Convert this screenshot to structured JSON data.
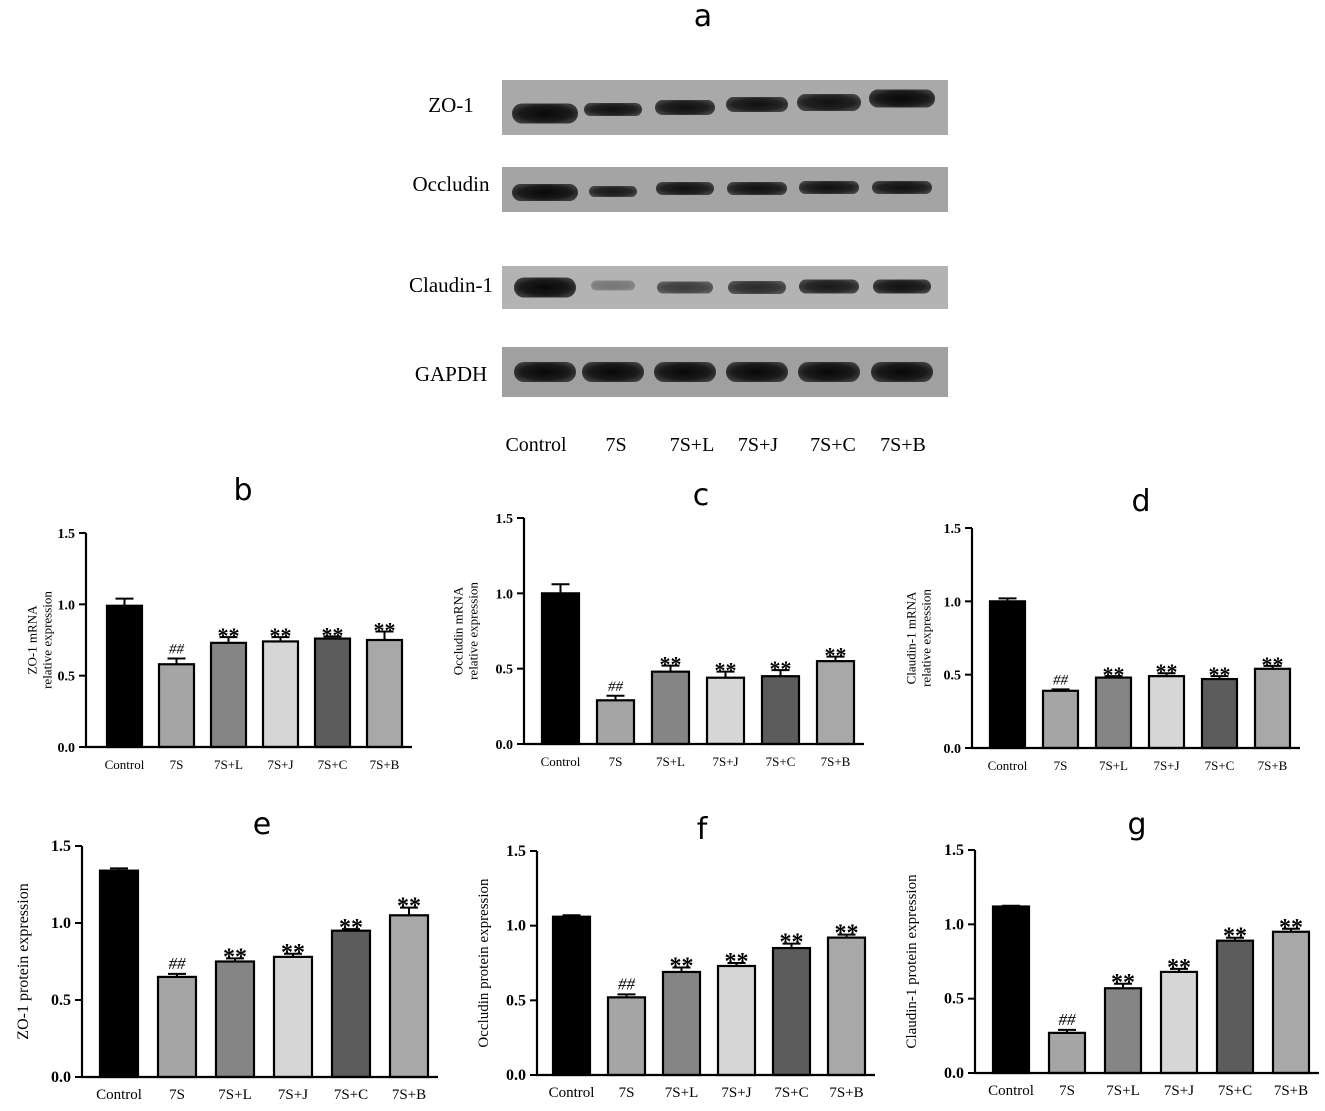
{
  "blot": {
    "letter": "a",
    "rows": [
      {
        "label": "ZO-1"
      },
      {
        "label": "Occludin"
      },
      {
        "label": "Claudin-1"
      },
      {
        "label": "GAPDH"
      }
    ],
    "lanes": [
      "Control",
      "7S",
      "7S+L",
      "7S+J",
      "7S+C",
      "7S+B"
    ]
  },
  "colors": {
    "Control": "#000000",
    "7S": "#a5a5a5",
    "7S+L": "#858585",
    "7S+J": "#d6d6d6",
    "7S+C": "#5c5c5c",
    "7S+B": "#a8a8a8"
  },
  "chart_data": [
    {
      "id": "b",
      "letter": "b",
      "type": "bar",
      "ylabel": [
        "ZO-1 mRNA",
        "relative expression"
      ],
      "categories": [
        "Control",
        "7S",
        "7S+L",
        "7S+J",
        "7S+C",
        "7S+B"
      ],
      "values": [
        0.99,
        0.58,
        0.73,
        0.74,
        0.76,
        0.75
      ],
      "errors": [
        0.05,
        0.04,
        0.04,
        0.03,
        0.015,
        0.06
      ],
      "annotations": [
        "",
        "##",
        "**",
        "**",
        "**",
        "**"
      ],
      "ylim": [
        0,
        1.5
      ],
      "yticks": [
        "0.0",
        "0.5",
        "1.0",
        "1.5"
      ]
    },
    {
      "id": "c",
      "letter": "c",
      "type": "bar",
      "ylabel": [
        "Occludin mRNA",
        "relative expression"
      ],
      "categories": [
        "Control",
        "7S",
        "7S+L",
        "7S+J",
        "7S+C",
        "7S+B"
      ],
      "values": [
        1.0,
        0.29,
        0.48,
        0.44,
        0.45,
        0.55
      ],
      "errors": [
        0.06,
        0.03,
        0.04,
        0.04,
        0.04,
        0.03
      ],
      "annotations": [
        "",
        "##",
        "**",
        "**",
        "**",
        "**"
      ],
      "ylim": [
        0,
        1.5
      ],
      "yticks": [
        "0.0",
        "0.5",
        "1.0",
        "1.5"
      ]
    },
    {
      "id": "d",
      "letter": "d",
      "type": "bar",
      "ylabel": [
        "Claudin-1 mRNA",
        "relative expression"
      ],
      "categories": [
        "Control",
        "7S",
        "7S+L",
        "7S+J",
        "7S+C",
        "7S+B"
      ],
      "values": [
        1.0,
        0.39,
        0.48,
        0.49,
        0.47,
        0.54
      ],
      "errors": [
        0.02,
        0.01,
        0.01,
        0.02,
        0.02,
        0.02
      ],
      "annotations": [
        "",
        "##",
        "**",
        "**",
        "**",
        "**"
      ],
      "ylim": [
        0,
        1.5
      ],
      "yticks": [
        "0.0",
        "0.5",
        "1.0",
        "1.5"
      ]
    },
    {
      "id": "e",
      "letter": "e",
      "type": "bar",
      "ylabel": [
        "ZO-1 protein expression"
      ],
      "categories": [
        "Control",
        "7S",
        "7S+L",
        "7S+J",
        "7S+C",
        "7S+B"
      ],
      "values": [
        1.34,
        0.65,
        0.75,
        0.78,
        0.95,
        1.05
      ],
      "errors": [
        0.015,
        0.02,
        0.02,
        0.02,
        0.01,
        0.05
      ],
      "annotations": [
        "",
        "##",
        "**",
        "**",
        "**",
        "**"
      ],
      "ylim": [
        0,
        1.5
      ],
      "yticks": [
        "0.0",
        "0.5",
        "1.0",
        "1.5"
      ]
    },
    {
      "id": "f",
      "letter": "f",
      "type": "bar",
      "ylabel": [
        "Occludin protein expression"
      ],
      "categories": [
        "Control",
        "7S",
        "7S+L",
        "7S+J",
        "7S+C",
        "7S+B"
      ],
      "values": [
        1.06,
        0.52,
        0.69,
        0.73,
        0.85,
        0.92
      ],
      "errors": [
        0.01,
        0.02,
        0.03,
        0.02,
        0.03,
        0.02
      ],
      "annotations": [
        "",
        "##",
        "**",
        "**",
        "**",
        "**"
      ],
      "ylim": [
        0,
        1.5
      ],
      "yticks": [
        "0.0",
        "0.5",
        "1.0",
        "1.5"
      ]
    },
    {
      "id": "g",
      "letter": "g",
      "type": "bar",
      "ylabel": [
        "Claudin-1 protein expression"
      ],
      "categories": [
        "Control",
        "7S",
        "7S+L",
        "7S+J",
        "7S+C",
        "7S+B"
      ],
      "values": [
        1.12,
        0.27,
        0.57,
        0.68,
        0.89,
        0.95
      ],
      "errors": [
        0.005,
        0.02,
        0.03,
        0.02,
        0.02,
        0.02
      ],
      "annotations": [
        "",
        "##",
        "**",
        "**",
        "**",
        "**"
      ],
      "ylim": [
        0,
        1.5
      ],
      "yticks": [
        "0.0",
        "0.5",
        "1.0",
        "1.5"
      ]
    }
  ]
}
